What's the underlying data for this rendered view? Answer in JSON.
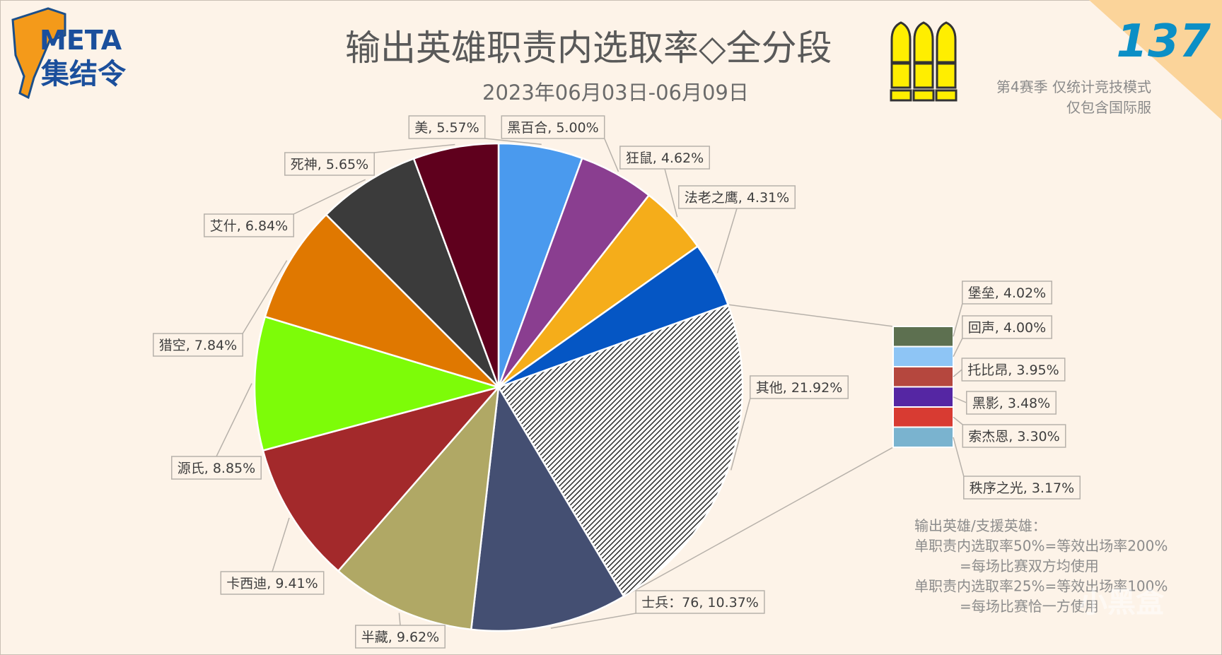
{
  "header": {
    "logo_top": "META",
    "logo_bottom": "集结令",
    "issue_number": "137"
  },
  "chart_data": {
    "type": "pie",
    "title": "输出英雄职责内选取率◇全分段",
    "subtitle": "2023年06月03日-06月09日",
    "slices": [
      {
        "label": "美, 5.57%",
        "value": 5.57,
        "color": "#4a9aee"
      },
      {
        "label": "黑百合, 5.00%",
        "value": 5.0,
        "color": "#8a3e90"
      },
      {
        "label": "狂鼠, 4.62%",
        "value": 4.62,
        "color": "#f5ad1a"
      },
      {
        "label": "法老之鹰, 4.31%",
        "value": 4.31,
        "color": "#0556c4"
      },
      {
        "label": "其他, 21.92%",
        "value": 21.92,
        "color": "#3a3a3a",
        "hatched": true
      },
      {
        "label": "士兵：76, 10.37%",
        "value": 10.37,
        "color": "#444f72"
      },
      {
        "label": "半藏, 9.62%",
        "value": 9.62,
        "color": "#b0a865"
      },
      {
        "label": "卡西迪, 9.41%",
        "value": 9.41,
        "color": "#a3292b"
      },
      {
        "label": "源氏, 8.85%",
        "value": 8.85,
        "color": "#7dfc08"
      },
      {
        "label": "猎空, 7.84%",
        "value": 7.84,
        "color": "#e07800"
      },
      {
        "label": "艾什, 6.84%",
        "value": 6.84,
        "color": "#3b3b3b"
      },
      {
        "label": "死神, 5.65%",
        "value": 5.65,
        "color": "#5f001d"
      }
    ],
    "breakdown_of": "其他",
    "breakdown": [
      {
        "label": "堡垒, 4.02%",
        "value": 4.02,
        "color": "#5d7050"
      },
      {
        "label": "回声, 4.00%",
        "value": 4.0,
        "color": "#8ec5f5"
      },
      {
        "label": "托比昂, 3.95%",
        "value": 3.95,
        "color": "#b5473e"
      },
      {
        "label": "黑影, 3.48%",
        "value": 3.48,
        "color": "#5526a3"
      },
      {
        "label": "索杰恩, 3.30%",
        "value": 3.3,
        "color": "#d83b32"
      },
      {
        "label": "秩序之光, 3.17%",
        "value": 3.17,
        "color": "#7ab3cf"
      }
    ]
  },
  "notes": {
    "season": "第4赛季 仅统计竞技模式",
    "server": "仅包含国际服",
    "explain": [
      "输出英雄/支援英雄：",
      "单职责内选取率50%=等效出场率200%",
      "=每场比赛双方均使用",
      "单职责内选取率25%=等效出场率100%",
      "=每场比赛恰一方使用"
    ]
  },
  "watermark": "小黑盒"
}
